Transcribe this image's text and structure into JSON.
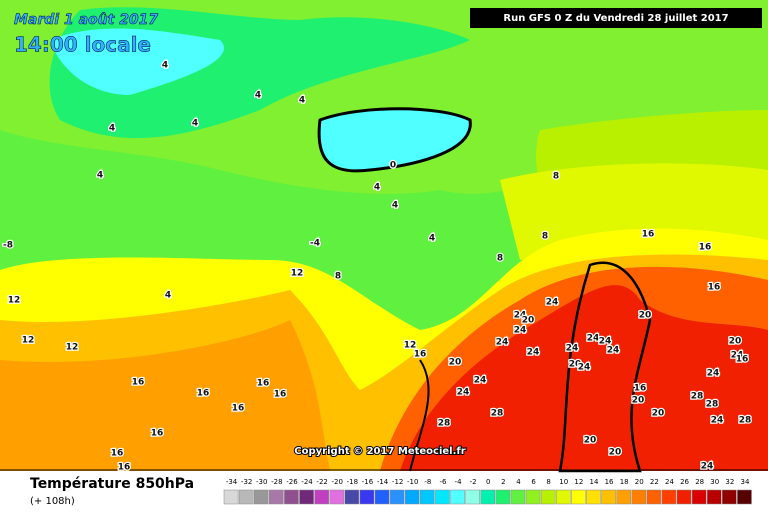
{
  "header": {
    "date": "Mardi 1 août 2017",
    "time": "14:00 locale",
    "run": "Run GFS 0 Z du Vendredi 28 juillet 2017"
  },
  "footer": {
    "title": "Température 850hPa",
    "lead": "(+ 108h)",
    "copyright": "Copyright © 2017 Meteociel.fr"
  },
  "legend": {
    "values": [
      -34,
      -32,
      -30,
      -28,
      -26,
      -24,
      -22,
      -20,
      -18,
      -16,
      -14,
      -12,
      -10,
      -8,
      -6,
      -4,
      -2,
      0,
      2,
      4,
      6,
      8,
      10,
      12,
      14,
      16,
      18,
      20,
      22,
      24,
      26,
      28,
      30,
      32,
      34
    ],
    "colors": [
      "#d8d8d8",
      "#b8b8b8",
      "#989898",
      "#a878a8",
      "#905090",
      "#702878",
      "#c040c0",
      "#e070e0",
      "#4848a8",
      "#3838f0",
      "#2060ff",
      "#2890ff",
      "#00a8ff",
      "#00c8ff",
      "#00e8ff",
      "#50ffff",
      "#90ffe8",
      "#00f0b0",
      "#20f070",
      "#60f040",
      "#90f020",
      "#b8f000",
      "#e0f800",
      "#ffff00",
      "#ffe000",
      "#ffc000",
      "#ffa000",
      "#ff8000",
      "#ff6000",
      "#ff4000",
      "#f02000",
      "#d80000",
      "#b80000",
      "#900000",
      "#580000"
    ]
  },
  "map": {
    "labels": [
      4,
      4,
      4,
      4,
      4,
      4,
      4,
      4,
      4,
      -8,
      -4,
      0,
      4,
      12,
      8,
      12,
      12,
      12,
      16,
      16,
      16,
      16,
      16,
      16,
      16,
      16,
      12,
      16,
      8,
      8,
      8,
      16,
      16,
      16,
      20,
      24,
      24,
      24,
      20,
      24,
      24,
      24,
      24,
      24,
      24,
      20,
      24,
      24,
      28,
      28,
      20,
      20,
      20,
      20,
      20,
      28,
      28,
      24,
      28,
      24,
      24,
      24,
      20,
      16,
      16,
      24
    ]
  }
}
